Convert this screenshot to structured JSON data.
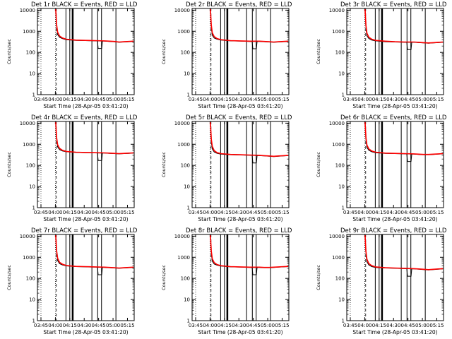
{
  "figure": {
    "ylabel": "Counts/sec",
    "xlabel": "Start Time (28-Apr-05 03:41:20)",
    "x_tick_labels": [
      "03:45",
      "04:00",
      "04:15",
      "04:30",
      "04:45",
      "05:00",
      "05:15"
    ],
    "y_tick_labels": [
      "1",
      "10",
      "100",
      "1000",
      "10000"
    ],
    "colors": {
      "events": "#000000",
      "lld": "#ff0000",
      "axes": "#000000",
      "background": "#ffffff"
    }
  },
  "chart_data": [
    {
      "type": "line",
      "title": "Det 1r  BLACK = Events, RED = LLD",
      "xlim": [
        "03:41:20",
        "05:22:00"
      ],
      "ylim": [
        1,
        12000
      ],
      "yscale": "log",
      "grid": false,
      "x_minutes_since_0341": [
        19,
        20,
        21,
        23,
        26,
        30,
        40,
        50,
        60,
        70,
        75,
        80,
        85,
        90,
        95,
        100
      ],
      "series": [
        {
          "name": "Events",
          "values": [
            10000,
            1500,
            700,
            520,
            450,
            400,
            370,
            360,
            350,
            340,
            330,
            320,
            300,
            310,
            320,
            330
          ]
        },
        {
          "name": "LLD",
          "values": [
            11000,
            2000,
            900,
            600,
            480,
            420,
            380,
            370,
            360,
            350,
            340,
            330,
            310,
            320,
            330,
            340
          ]
        }
      ],
      "dotted_lines": [
        "03:45",
        "04:00"
      ],
      "dashed_lines": [
        "04:01"
      ],
      "gap_lines": [
        "04:11",
        "04:15",
        "04:18",
        "04:38",
        "04:44",
        "04:48",
        "05:03"
      ],
      "dip_at": "04:46"
    },
    {
      "type": "line",
      "title": "Det 2r  BLACK = Events, RED = LLD",
      "xlim": [
        "03:41:20",
        "05:22:00"
      ],
      "ylim": [
        1,
        12000
      ],
      "yscale": "log",
      "grid": false,
      "x_minutes_since_0341": [
        19,
        20,
        21,
        23,
        26,
        30,
        40,
        50,
        60,
        70,
        75,
        80,
        85,
        90,
        95,
        100
      ],
      "series": [
        {
          "name": "Events",
          "values": [
            10000,
            1400,
            650,
            480,
            420,
            380,
            350,
            340,
            330,
            330,
            320,
            310,
            300,
            310,
            320,
            330
          ]
        },
        {
          "name": "LLD",
          "values": [
            11000,
            1900,
            850,
            560,
            450,
            400,
            360,
            350,
            340,
            340,
            330,
            320,
            310,
            320,
            330,
            340
          ]
        }
      ],
      "dotted_lines": [
        "03:45",
        "04:00"
      ],
      "dashed_lines": [
        "04:01"
      ],
      "gap_lines": [
        "04:11",
        "04:15",
        "04:18",
        "04:38",
        "04:44",
        "04:48",
        "05:03"
      ],
      "dip_at": "04:46"
    },
    {
      "type": "line",
      "title": "Det 3r  BLACK = Events, RED = LLD",
      "xlim": [
        "03:41:20",
        "05:22:00"
      ],
      "ylim": [
        1,
        12000
      ],
      "yscale": "log",
      "grid": false,
      "x_minutes_since_0341": [
        19,
        20,
        21,
        23,
        26,
        30,
        40,
        50,
        60,
        70,
        75,
        80,
        85,
        90,
        95,
        100
      ],
      "series": [
        {
          "name": "Events",
          "values": [
            10000,
            1300,
            600,
            450,
            380,
            350,
            320,
            310,
            300,
            300,
            290,
            280,
            270,
            280,
            290,
            300
          ]
        },
        {
          "name": "LLD",
          "values": [
            11000,
            1800,
            800,
            520,
            420,
            370,
            340,
            320,
            310,
            310,
            300,
            290,
            280,
            290,
            300,
            310
          ]
        }
      ],
      "dotted_lines": [
        "03:45",
        "04:00"
      ],
      "dashed_lines": [
        "04:01"
      ],
      "gap_lines": [
        "04:11",
        "04:15",
        "04:18",
        "04:38",
        "04:44",
        "04:48",
        "05:03"
      ],
      "dip_at": "04:46"
    },
    {
      "type": "line",
      "title": "Det 4r  BLACK = Events, RED = LLD",
      "xlim": [
        "03:41:20",
        "05:22:00"
      ],
      "ylim": [
        1,
        12000
      ],
      "yscale": "log",
      "grid": false,
      "x_minutes_since_0341": [
        19,
        20,
        21,
        23,
        26,
        30,
        40,
        50,
        60,
        70,
        75,
        80,
        85,
        90,
        95,
        100
      ],
      "series": [
        {
          "name": "Events",
          "values": [
            10000,
            1500,
            750,
            560,
            480,
            440,
            410,
            400,
            390,
            380,
            370,
            360,
            350,
            360,
            370,
            380
          ]
        },
        {
          "name": "LLD",
          "values": [
            11000,
            2000,
            950,
            640,
            520,
            460,
            420,
            410,
            400,
            390,
            380,
            370,
            360,
            370,
            380,
            390
          ]
        }
      ],
      "dotted_lines": [
        "03:45",
        "04:00"
      ],
      "dashed_lines": [
        "04:01"
      ],
      "gap_lines": [
        "04:11",
        "04:15",
        "04:18",
        "04:38",
        "04:44",
        "04:48",
        "05:03"
      ],
      "dip_at": "04:46"
    },
    {
      "type": "line",
      "title": "Det 5r  BLACK = Events, RED = LLD",
      "xlim": [
        "03:41:20",
        "05:22:00"
      ],
      "ylim": [
        1,
        12000
      ],
      "yscale": "log",
      "grid": false,
      "x_minutes_since_0341": [
        19,
        20,
        21,
        23,
        26,
        30,
        40,
        50,
        60,
        70,
        75,
        80,
        85,
        90,
        95,
        100
      ],
      "series": [
        {
          "name": "Events",
          "values": [
            10000,
            1200,
            600,
            430,
            370,
            340,
            320,
            310,
            300,
            290,
            280,
            270,
            260,
            270,
            280,
            290
          ]
        },
        {
          "name": "LLD",
          "values": [
            11000,
            1700,
            800,
            500,
            400,
            360,
            330,
            320,
            310,
            300,
            290,
            280,
            270,
            280,
            290,
            300
          ]
        }
      ],
      "dotted_lines": [
        "03:45",
        "04:00"
      ],
      "dashed_lines": [
        "04:01"
      ],
      "gap_lines": [
        "04:11",
        "04:15",
        "04:18",
        "04:38",
        "04:44",
        "04:48",
        "05:03"
      ],
      "dip_at": "04:46"
    },
    {
      "type": "line",
      "title": "Det 6r  BLACK = Events, RED = LLD",
      "xlim": [
        "03:41:20",
        "05:22:00"
      ],
      "ylim": [
        1,
        12000
      ],
      "yscale": "log",
      "grid": false,
      "x_minutes_since_0341": [
        19,
        20,
        21,
        23,
        26,
        30,
        40,
        50,
        60,
        70,
        75,
        80,
        85,
        90,
        95,
        100
      ],
      "series": [
        {
          "name": "Events",
          "values": [
            10000,
            1500,
            700,
            520,
            440,
            400,
            370,
            360,
            350,
            340,
            330,
            320,
            320,
            330,
            340,
            350
          ]
        },
        {
          "name": "LLD",
          "values": [
            11000,
            2000,
            900,
            600,
            480,
            420,
            380,
            370,
            360,
            350,
            340,
            330,
            330,
            340,
            350,
            360
          ]
        }
      ],
      "dotted_lines": [
        "03:45",
        "04:00"
      ],
      "dashed_lines": [
        "04:01"
      ],
      "gap_lines": [
        "04:11",
        "04:15",
        "04:18",
        "04:38",
        "04:44",
        "04:48",
        "05:03"
      ],
      "dip_at": "04:46"
    },
    {
      "type": "line",
      "title": "Det 7r  BLACK = Events, RED = LLD",
      "xlim": [
        "03:41:20",
        "05:22:00"
      ],
      "ylim": [
        1,
        12000
      ],
      "yscale": "log",
      "grid": false,
      "x_minutes_since_0341": [
        19,
        20,
        21,
        23,
        26,
        30,
        40,
        50,
        60,
        70,
        75,
        80,
        85,
        90,
        95,
        100
      ],
      "series": [
        {
          "name": "Events",
          "values": [
            10000,
            1500,
            700,
            500,
            430,
            390,
            360,
            350,
            340,
            330,
            320,
            310,
            300,
            310,
            320,
            330
          ]
        },
        {
          "name": "LLD",
          "values": [
            11000,
            2000,
            900,
            580,
            470,
            410,
            370,
            360,
            350,
            340,
            330,
            320,
            310,
            320,
            330,
            340
          ]
        }
      ],
      "dotted_lines": [
        "03:45",
        "04:00"
      ],
      "dashed_lines": [
        "04:01"
      ],
      "gap_lines": [
        "04:11",
        "04:15",
        "04:18",
        "04:38",
        "04:44",
        "04:48",
        "05:03"
      ],
      "dip_at": "04:46"
    },
    {
      "type": "line",
      "title": "Det 8r  BLACK = Events, RED = LLD",
      "xlim": [
        "03:41:20",
        "05:22:00"
      ],
      "ylim": [
        1,
        12000
      ],
      "yscale": "log",
      "grid": false,
      "x_minutes_since_0341": [
        19,
        20,
        21,
        23,
        26,
        30,
        40,
        50,
        60,
        70,
        75,
        80,
        85,
        90,
        95,
        100
      ],
      "series": [
        {
          "name": "Events",
          "values": [
            10000,
            1400,
            650,
            480,
            420,
            380,
            350,
            340,
            330,
            330,
            320,
            320,
            330,
            340,
            350,
            360
          ]
        },
        {
          "name": "LLD",
          "values": [
            11000,
            1900,
            850,
            560,
            450,
            400,
            360,
            350,
            340,
            340,
            330,
            330,
            340,
            350,
            360,
            370
          ]
        }
      ],
      "dotted_lines": [
        "03:45",
        "04:00"
      ],
      "dashed_lines": [
        "04:01"
      ],
      "gap_lines": [
        "04:11",
        "04:15",
        "04:18",
        "04:38",
        "04:44",
        "04:48",
        "05:03"
      ],
      "dip_at": "04:46"
    },
    {
      "type": "line",
      "title": "Det 9r  BLACK = Events, RED = LLD",
      "xlim": [
        "03:41:20",
        "05:22:00"
      ],
      "ylim": [
        1,
        12000
      ],
      "yscale": "log",
      "grid": false,
      "x_minutes_since_0341": [
        19,
        20,
        21,
        23,
        26,
        30,
        40,
        50,
        60,
        70,
        75,
        80,
        85,
        90,
        95,
        100
      ],
      "series": [
        {
          "name": "Events",
          "values": [
            10000,
            1300,
            600,
            430,
            360,
            330,
            310,
            300,
            290,
            280,
            270,
            260,
            250,
            260,
            270,
            280
          ]
        },
        {
          "name": "LLD",
          "values": [
            11000,
            1800,
            800,
            500,
            400,
            350,
            320,
            310,
            300,
            290,
            280,
            270,
            260,
            270,
            280,
            290
          ]
        }
      ],
      "dotted_lines": [
        "03:45",
        "04:00"
      ],
      "dashed_lines": [
        "04:01"
      ],
      "gap_lines": [
        "04:11",
        "04:15",
        "04:18",
        "04:38",
        "04:44",
        "04:48",
        "05:03"
      ],
      "dip_at": "04:46"
    }
  ]
}
